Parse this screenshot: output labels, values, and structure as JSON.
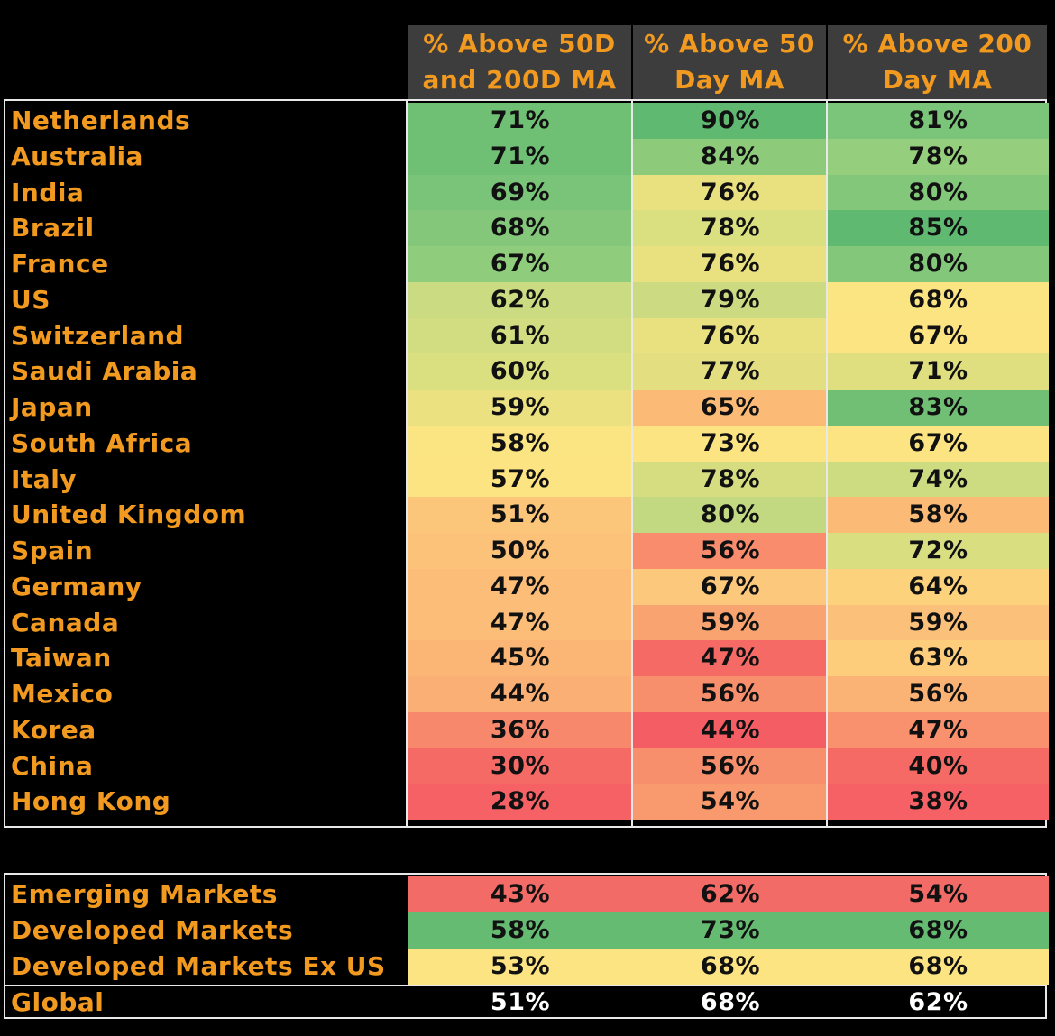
{
  "chart_data": {
    "type": "table",
    "columns": [
      "% Above 50D and 200D MA",
      "% Above 50 Day MA",
      "% Above 200 Day MA"
    ],
    "column_lines": [
      [
        "% Above 50D",
        "and 200D MA"
      ],
      [
        "% Above 50",
        "Day MA"
      ],
      [
        "% Above 200",
        "Day MA"
      ]
    ],
    "countries": [
      {
        "name": "Netherlands",
        "values": [
          "71%",
          "90%",
          "81%"
        ],
        "colors": [
          "#6fbf74",
          "#5fb971",
          "#7bc57a"
        ]
      },
      {
        "name": "Australia",
        "values": [
          "71%",
          "84%",
          "78%"
        ],
        "colors": [
          "#6fbf74",
          "#8dcb7b",
          "#95ce7d"
        ]
      },
      {
        "name": "India",
        "values": [
          "69%",
          "76%",
          "80%"
        ],
        "colors": [
          "#7ac47a",
          "#e9e17f",
          "#83c77b"
        ]
      },
      {
        "name": "Brazil",
        "values": [
          "68%",
          "78%",
          "85%"
        ],
        "colors": [
          "#84c77b",
          "#dadf80",
          "#5fb971"
        ]
      },
      {
        "name": "France",
        "values": [
          "67%",
          "76%",
          "80%"
        ],
        "colors": [
          "#8fcc7c",
          "#e9e17f",
          "#83c77b"
        ]
      },
      {
        "name": "US",
        "values": [
          "62%",
          "79%",
          "68%"
        ],
        "colors": [
          "#cadb81",
          "#ccdb81",
          "#fbe482"
        ]
      },
      {
        "name": "Switzerland",
        "values": [
          "61%",
          "76%",
          "67%"
        ],
        "colors": [
          "#d2dd81",
          "#e9e17f",
          "#fde482"
        ]
      },
      {
        "name": "Saudi Arabia",
        "values": [
          "60%",
          "77%",
          "71%"
        ],
        "colors": [
          "#dadf80",
          "#e3df80",
          "#dfdf80"
        ]
      },
      {
        "name": "Japan",
        "values": [
          "59%",
          "65%",
          "83%"
        ],
        "colors": [
          "#ece181",
          "#fbbb77",
          "#71bf74"
        ]
      },
      {
        "name": "South Africa",
        "values": [
          "58%",
          "73%",
          "67%"
        ],
        "colors": [
          "#fbe482",
          "#fde482",
          "#fde482"
        ]
      },
      {
        "name": "Italy",
        "values": [
          "57%",
          "78%",
          "74%"
        ],
        "colors": [
          "#fde482",
          "#d5dd80",
          "#cddb81"
        ]
      },
      {
        "name": "United Kingdom",
        "values": [
          "51%",
          "80%",
          "58%"
        ],
        "colors": [
          "#fcc67a",
          "#c2d881",
          "#fbbb77"
        ]
      },
      {
        "name": "Spain",
        "values": [
          "50%",
          "56%",
          "72%"
        ],
        "colors": [
          "#fcc27a",
          "#f88c6c",
          "#d9de81"
        ]
      },
      {
        "name": "Germany",
        "values": [
          "47%",
          "67%",
          "64%"
        ],
        "colors": [
          "#fbbd78",
          "#fcc87b",
          "#fdd27d"
        ]
      },
      {
        "name": "Canada",
        "values": [
          "47%",
          "59%",
          "59%"
        ],
        "colors": [
          "#fbbd78",
          "#f9a470",
          "#fbc07a"
        ]
      },
      {
        "name": "Taiwan",
        "values": [
          "45%",
          "47%",
          "63%"
        ],
        "colors": [
          "#fbb676",
          "#f66a66",
          "#fdcd7c"
        ]
      },
      {
        "name": "Mexico",
        "values": [
          "44%",
          "56%",
          "56%"
        ],
        "colors": [
          "#fab075",
          "#f88f6c",
          "#fab375"
        ]
      },
      {
        "name": "Korea",
        "values": [
          "36%",
          "44%",
          "47%"
        ],
        "colors": [
          "#f8886c",
          "#f45d64",
          "#f9906e"
        ]
      },
      {
        "name": "China",
        "values": [
          "30%",
          "56%",
          "40%"
        ],
        "colors": [
          "#f66a66",
          "#f88f6c",
          "#f66a66"
        ]
      },
      {
        "name": "Hong Kong",
        "values": [
          "28%",
          "54%",
          "38%"
        ],
        "colors": [
          "#f56165",
          "#f99a6e",
          "#f56165"
        ]
      }
    ],
    "aggregates": [
      {
        "name": "Emerging Markets",
        "values": [
          "43%",
          "62%",
          "54%"
        ],
        "color": "#f26b66"
      },
      {
        "name": "Developed Markets",
        "values": [
          "58%",
          "73%",
          "68%"
        ],
        "color": "#64bb71"
      },
      {
        "name": "Developed Markets Ex US",
        "values": [
          "53%",
          "68%",
          "68%"
        ],
        "color": "#fde482"
      }
    ],
    "global": {
      "name": "Global",
      "values": [
        "51%",
        "68%",
        "62%"
      ]
    }
  }
}
